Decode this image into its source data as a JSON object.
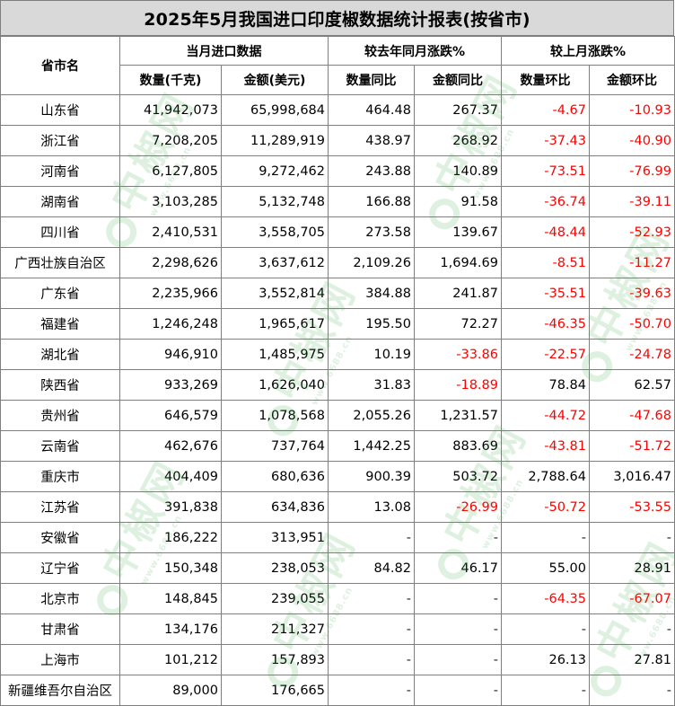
{
  "title": "2025年5月我国进口印度椒数据统计报表(按省市)",
  "headers": {
    "province": "省市名",
    "group_current": "当月进口数据",
    "group_yoy": "较去年同月涨跌%",
    "group_mom": "较上月涨跌%",
    "qty": "数量(千克)",
    "amount": "金额(美元)",
    "qty_yoy": "数量同比",
    "amount_yoy": "金额同比",
    "qty_mom": "数量环比",
    "amount_mom": "金额环比"
  },
  "watermark": {
    "brand": "中椒网",
    "site": "www.6688.cn"
  },
  "rows": [
    {
      "name": "山东省",
      "qty": "41,942,073",
      "amount": "65,998,684",
      "qty_yoy": "464.48",
      "amount_yoy": "267.37",
      "qty_mom": "-4.67",
      "amount_mom": "-10.93"
    },
    {
      "name": "浙江省",
      "qty": "7,208,205",
      "amount": "11,289,919",
      "qty_yoy": "438.97",
      "amount_yoy": "268.92",
      "qty_mom": "-37.43",
      "amount_mom": "-40.90"
    },
    {
      "name": "河南省",
      "qty": "6,127,805",
      "amount": "9,272,462",
      "qty_yoy": "243.88",
      "amount_yoy": "140.89",
      "qty_mom": "-73.51",
      "amount_mom": "-76.99"
    },
    {
      "name": "湖南省",
      "qty": "3,103,285",
      "amount": "5,132,748",
      "qty_yoy": "166.88",
      "amount_yoy": "91.58",
      "qty_mom": "-36.74",
      "amount_mom": "-39.11"
    },
    {
      "name": "四川省",
      "qty": "2,410,531",
      "amount": "3,558,705",
      "qty_yoy": "273.58",
      "amount_yoy": "139.67",
      "qty_mom": "-48.44",
      "amount_mom": "-52.93"
    },
    {
      "name": "广西壮族自治区",
      "qty": "2,298,626",
      "amount": "3,637,612",
      "qty_yoy": "2,109.26",
      "amount_yoy": "1,694.69",
      "qty_mom": "-8.51",
      "amount_mom": "-11.27"
    },
    {
      "name": "广东省",
      "qty": "2,235,966",
      "amount": "3,552,814",
      "qty_yoy": "384.88",
      "amount_yoy": "241.87",
      "qty_mom": "-35.51",
      "amount_mom": "-39.63"
    },
    {
      "name": "福建省",
      "qty": "1,246,248",
      "amount": "1,965,617",
      "qty_yoy": "195.50",
      "amount_yoy": "72.27",
      "qty_mom": "-46.35",
      "amount_mom": "-50.70"
    },
    {
      "name": "湖北省",
      "qty": "946,910",
      "amount": "1,485,975",
      "qty_yoy": "10.19",
      "amount_yoy": "-33.86",
      "qty_mom": "-22.57",
      "amount_mom": "-24.78"
    },
    {
      "name": "陕西省",
      "qty": "933,269",
      "amount": "1,626,040",
      "qty_yoy": "31.83",
      "amount_yoy": "-18.89",
      "qty_mom": "78.84",
      "amount_mom": "62.57"
    },
    {
      "name": "贵州省",
      "qty": "646,579",
      "amount": "1,078,568",
      "qty_yoy": "2,055.26",
      "amount_yoy": "1,231.57",
      "qty_mom": "-44.72",
      "amount_mom": "-47.68"
    },
    {
      "name": "云南省",
      "qty": "462,676",
      "amount": "737,764",
      "qty_yoy": "1,442.25",
      "amount_yoy": "883.69",
      "qty_mom": "-43.81",
      "amount_mom": "-51.72"
    },
    {
      "name": "重庆市",
      "qty": "404,409",
      "amount": "680,636",
      "qty_yoy": "900.39",
      "amount_yoy": "503.72",
      "qty_mom": "2,788.64",
      "amount_mom": "3,016.47"
    },
    {
      "name": "江苏省",
      "qty": "391,838",
      "amount": "634,836",
      "qty_yoy": "13.08",
      "amount_yoy": "-26.99",
      "qty_mom": "-50.72",
      "amount_mom": "-53.55"
    },
    {
      "name": "安徽省",
      "qty": "186,222",
      "amount": "313,951",
      "qty_yoy": "-",
      "amount_yoy": "-",
      "qty_mom": "-",
      "amount_mom": "-"
    },
    {
      "name": "辽宁省",
      "qty": "150,348",
      "amount": "238,053",
      "qty_yoy": "84.82",
      "amount_yoy": "46.17",
      "qty_mom": "55.00",
      "amount_mom": "28.91"
    },
    {
      "name": "北京市",
      "qty": "148,845",
      "amount": "239,055",
      "qty_yoy": "-",
      "amount_yoy": "-",
      "qty_mom": "-64.35",
      "amount_mom": "-67.07"
    },
    {
      "name": "甘肃省",
      "qty": "134,176",
      "amount": "211,327",
      "qty_yoy": "-",
      "amount_yoy": "-",
      "qty_mom": "-",
      "amount_mom": "-"
    },
    {
      "name": "上海市",
      "qty": "101,212",
      "amount": "157,893",
      "qty_yoy": "-",
      "amount_yoy": "-",
      "qty_mom": "26.13",
      "amount_mom": "27.81"
    },
    {
      "name": "新疆维吾尔自治区",
      "qty": "89,000",
      "amount": "176,665",
      "qty_yoy": "-",
      "amount_yoy": "-",
      "qty_mom": "-",
      "amount_mom": "-"
    }
  ]
}
